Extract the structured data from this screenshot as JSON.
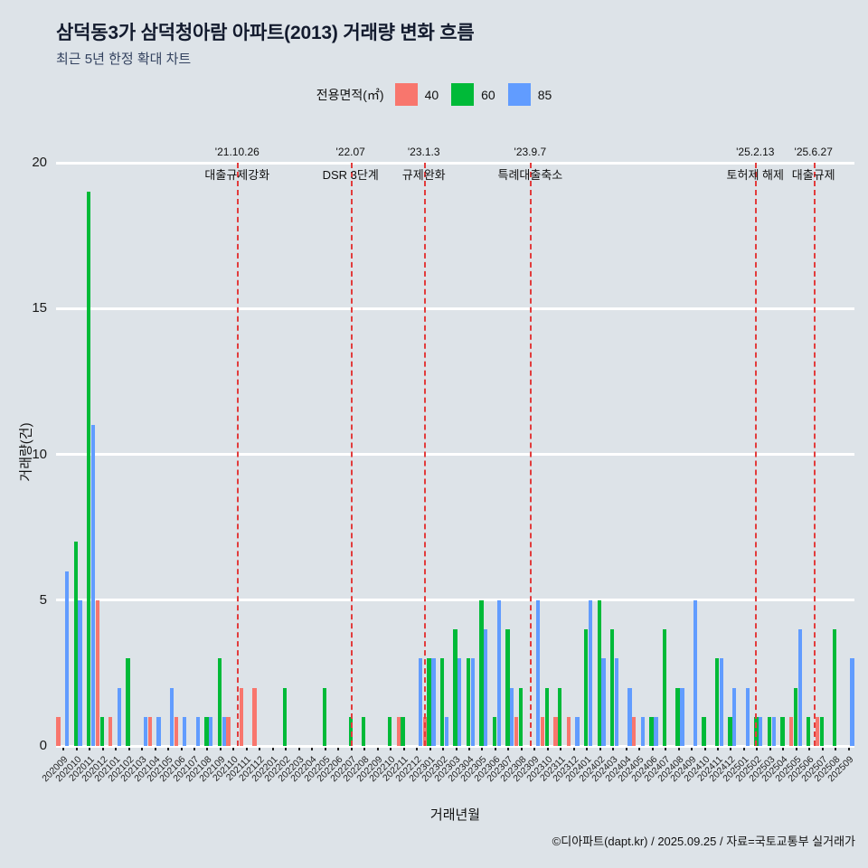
{
  "header": {
    "title": "삼덕동3가 삼덕청아람 아파트(2013) 거래량 변화 흐름",
    "subtitle": "최근 5년 한정 확대 차트"
  },
  "legend": {
    "title": "전용면적(㎡)",
    "items": [
      {
        "label": "40",
        "color": "#f8766d"
      },
      {
        "label": "60",
        "color": "#00ba38"
      },
      {
        "label": "85",
        "color": "#619cff"
      }
    ]
  },
  "footer": {
    "credit": "©디아파트(dapt.kr) / 2025.09.25 / 자료=국토교통부 실거래가"
  },
  "chart_data": {
    "type": "bar",
    "title": "삼덕동3가 삼덕청아람 아파트(2013) 거래량 변화 흐름",
    "subtitle": "최근 5년 한정 확대 차트",
    "xlabel": "거래년월",
    "ylabel": "거래량(건)",
    "ylim": [
      0,
      20
    ],
    "yticks": [
      0,
      5,
      10,
      15,
      20
    ],
    "grid": "horizontal-white",
    "legend_position": "top",
    "background": "#dde3e8",
    "event_line_color": "#e23c3c",
    "categories": [
      "202009",
      "202010",
      "202011",
      "202012",
      "202101",
      "202102",
      "202103",
      "202104",
      "202105",
      "202106",
      "202107",
      "202108",
      "202109",
      "202110",
      "202111",
      "202112",
      "202201",
      "202202",
      "202203",
      "202204",
      "202205",
      "202206",
      "202207",
      "202208",
      "202209",
      "202210",
      "202211",
      "202212",
      "202301",
      "202302",
      "202303",
      "202304",
      "202305",
      "202306",
      "202307",
      "202308",
      "202309",
      "202310",
      "202311",
      "202312",
      "202401",
      "202402",
      "202403",
      "202404",
      "202405",
      "202406",
      "202407",
      "202408",
      "202409",
      "202410",
      "202411",
      "202412",
      "202501",
      "202502",
      "202503",
      "202504",
      "202505",
      "202506",
      "202507",
      "202508",
      "202509"
    ],
    "series": [
      {
        "name": "40",
        "color": "#f8766d",
        "values": [
          1,
          0,
          0,
          5,
          1,
          0,
          0,
          1,
          0,
          1,
          0,
          0,
          0,
          1,
          2,
          2,
          0,
          0,
          0,
          0,
          0,
          0,
          0,
          0,
          0,
          0,
          1,
          0,
          1,
          0,
          0,
          0,
          0,
          0,
          0,
          1,
          0,
          1,
          1,
          1,
          0,
          0,
          0,
          0,
          1,
          0,
          0,
          0,
          0,
          0,
          0,
          0,
          0,
          0,
          0,
          0,
          1,
          0,
          1,
          0,
          0
        ]
      },
      {
        "name": "60",
        "color": "#00ba38",
        "values": [
          0,
          7,
          19,
          1,
          0,
          3,
          0,
          0,
          0,
          0,
          0,
          1,
          3,
          0,
          0,
          0,
          0,
          2,
          0,
          0,
          2,
          0,
          1,
          1,
          0,
          1,
          1,
          0,
          3,
          3,
          4,
          3,
          5,
          1,
          4,
          2,
          0,
          2,
          2,
          0,
          4,
          5,
          4,
          0,
          0,
          1,
          4,
          2,
          0,
          1,
          3,
          1,
          0,
          1,
          1,
          1,
          2,
          1,
          1,
          4,
          0
        ]
      },
      {
        "name": "85",
        "color": "#619cff",
        "values": [
          6,
          5,
          11,
          0,
          2,
          0,
          1,
          1,
          2,
          1,
          1,
          1,
          1,
          0,
          0,
          0,
          0,
          0,
          0,
          0,
          0,
          0,
          0,
          0,
          0,
          0,
          0,
          3,
          3,
          1,
          3,
          3,
          4,
          5,
          2,
          0,
          5,
          0,
          0,
          1,
          5,
          3,
          3,
          2,
          1,
          1,
          0,
          2,
          5,
          0,
          3,
          2,
          2,
          1,
          1,
          0,
          4,
          0,
          0,
          0,
          3
        ]
      }
    ],
    "events": [
      {
        "date": "'21.10.26",
        "label": "대출규제강화",
        "month": "202110",
        "day": 26
      },
      {
        "date": "'22.07",
        "label": "DSR 3단계",
        "month": "202207",
        "day": null
      },
      {
        "date": "'23.1.3",
        "label": "규제완화",
        "month": "202301",
        "day": 3
      },
      {
        "date": "'23.9.7",
        "label": "특례대출축소",
        "month": "202309",
        "day": 7
      },
      {
        "date": "'25.2.13",
        "label": "토허제 해제",
        "month": "202502",
        "day": 13
      },
      {
        "date": "'25.6.27",
        "label": "대출규제",
        "month": "202506",
        "day": 27
      }
    ]
  }
}
